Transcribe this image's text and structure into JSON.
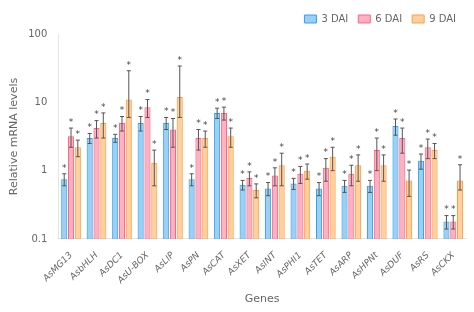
{
  "chart_data": {
    "type": "bar",
    "categories": [
      "AsMG13",
      "AsbHLH",
      "AsDC1",
      "AsU-BOX",
      "AsLIP",
      "AsPN",
      "AsCAT",
      "AsXET",
      "AsINT",
      "AsPHI1",
      "AsTET",
      "AsARP",
      "AsHPNt",
      "AsDUF",
      "AsRS",
      "AsCKX"
    ],
    "series": [
      {
        "name": "3 DAI",
        "values": [
          0.75,
          3.0,
          3.0,
          5.0,
          5.0,
          0.75,
          7.0,
          0.62,
          0.55,
          0.65,
          0.55,
          0.6,
          0.6,
          4.5,
          1.4,
          0.18
        ],
        "error_low": [
          0.15,
          0.5,
          0.4,
          1.2,
          1.0,
          0.15,
          1.2,
          0.1,
          0.12,
          0.12,
          0.12,
          0.12,
          0.12,
          1.2,
          0.35,
          0.04
        ],
        "error_high": [
          0.15,
          0.5,
          0.4,
          1.2,
          1.0,
          0.15,
          1.2,
          0.1,
          0.12,
          0.12,
          0.12,
          0.12,
          0.12,
          1.2,
          0.35,
          0.04
        ],
        "annotations": [
          "*",
          "*",
          "*",
          "*",
          "*",
          "*",
          "*",
          "*",
          "*",
          "*",
          "*",
          "*",
          "*",
          "*",
          "*",
          "*"
        ]
      },
      {
        "name": "6 DAI",
        "values": [
          3.2,
          4.2,
          5.0,
          8.5,
          4.0,
          3.0,
          7.0,
          0.78,
          0.85,
          0.9,
          1.1,
          0.9,
          2.0,
          3.0,
          2.2,
          0.18
        ],
        "error_low": [
          1.0,
          1.2,
          1.2,
          2.5,
          1.8,
          1.0,
          1.5,
          0.18,
          0.25,
          0.25,
          0.4,
          0.3,
          1.0,
          1.2,
          0.7,
          0.04
        ],
        "error_high": [
          1.0,
          1.2,
          1.2,
          2.5,
          1.8,
          1.0,
          1.5,
          0.18,
          0.25,
          0.25,
          0.4,
          0.3,
          1.0,
          1.2,
          0.7,
          0.04
        ],
        "annotations": [
          "*",
          "*",
          "*",
          "*",
          "*",
          "*",
          "*",
          "*",
          "*",
          "*",
          "*",
          "*",
          "*",
          "*",
          "*",
          "*"
        ]
      },
      {
        "name": "9 DAI",
        "values": [
          2.2,
          5.0,
          11.0,
          1.3,
          12.0,
          3.0,
          3.2,
          0.52,
          1.2,
          1.0,
          1.6,
          1.2,
          1.2,
          0.72,
          2.0,
          0.72
        ],
        "error_low": [
          0.6,
          2.0,
          5.0,
          0.7,
          6.0,
          0.8,
          1.0,
          0.12,
          0.6,
          0.25,
          0.6,
          0.5,
          0.5,
          0.3,
          0.5,
          0.2
        ],
        "error_high": [
          0.6,
          2.0,
          18.0,
          0.7,
          22.0,
          0.8,
          1.0,
          0.12,
          0.6,
          0.25,
          0.6,
          0.5,
          0.5,
          0.3,
          0.5,
          0.5
        ],
        "annotations": [
          "*",
          "*",
          "*",
          "*",
          "*",
          "*",
          "*",
          "*",
          "*",
          "*",
          "*",
          "*",
          "*",
          "*",
          "*",
          "*"
        ]
      }
    ],
    "xlabel": "Genes",
    "ylabel": "Relative mRNA levels",
    "log": "y",
    "ylim": [
      0.1,
      100
    ],
    "yticks": [
      0.1,
      1,
      10,
      100
    ],
    "grid": false,
    "legend": "upper right"
  }
}
